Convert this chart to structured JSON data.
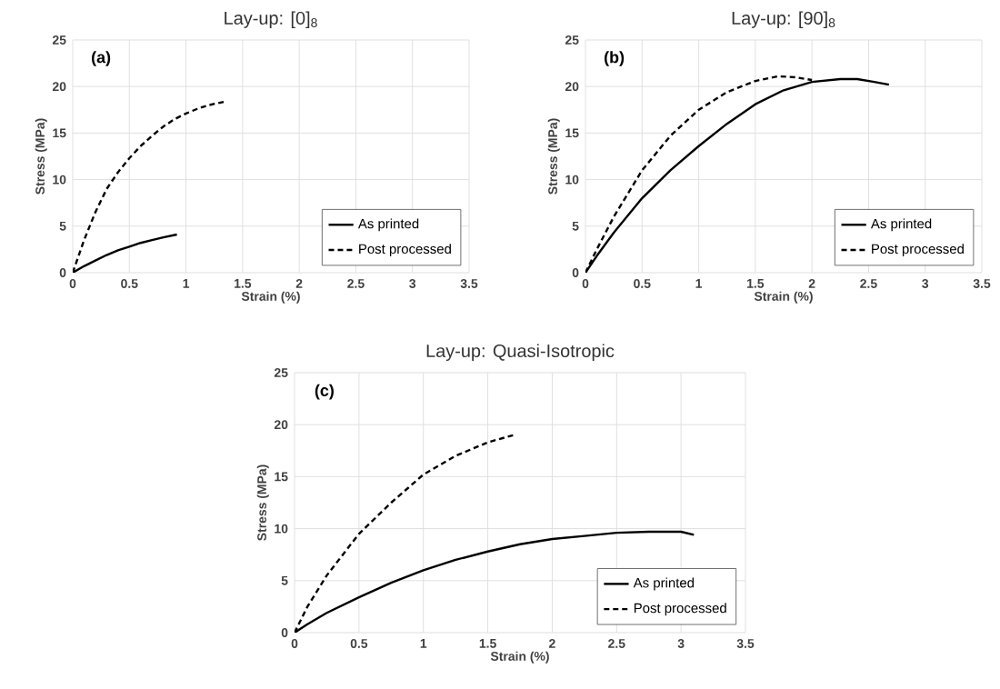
{
  "chart_data": [
    {
      "type": "line",
      "title": "Lay-up: [0]$_{8}$",
      "xlabel": "Strain (%)",
      "ylabel": "Stress (MPa)",
      "annotations": [
        "(a)"
      ],
      "xlim": [
        0,
        3.5
      ],
      "ylim": [
        0,
        25
      ],
      "xticks": [
        0,
        0.5,
        1,
        1.5,
        2,
        2.5,
        3,
        3.5
      ],
      "yticks": [
        0,
        5,
        10,
        15,
        20,
        25
      ],
      "grid": true,
      "legend": "bottom right",
      "series": [
        {
          "name": "As printed",
          "color": "#000000",
          "line_style": "solid",
          "x": [
            0,
            0.1,
            0.2,
            0.3,
            0.4,
            0.5,
            0.6,
            0.7,
            0.8,
            0.92
          ],
          "values": [
            0,
            0.7,
            1.3,
            1.9,
            2.4,
            2.8,
            3.2,
            3.5,
            3.8,
            4.1
          ]
        },
        {
          "name": "Post processed",
          "color": "#000000",
          "line_style": "dashed",
          "x": [
            0,
            0.1,
            0.2,
            0.3,
            0.4,
            0.5,
            0.6,
            0.7,
            0.8,
            0.9,
            1.0,
            1.1,
            1.2,
            1.35
          ],
          "values": [
            0,
            3.5,
            6.5,
            9,
            10.8,
            12.3,
            13.6,
            14.7,
            15.7,
            16.5,
            17.1,
            17.6,
            18,
            18.4
          ]
        }
      ]
    },
    {
      "type": "line",
      "title": "Lay-up: [90]$_{8}$",
      "xlabel": "Strain (%)",
      "ylabel": "Stress (MPa)",
      "annotations": [
        "(b)"
      ],
      "xlim": [
        0,
        3.5
      ],
      "ylim": [
        0,
        25
      ],
      "xticks": [
        0,
        0.5,
        1,
        1.5,
        2,
        2.5,
        3,
        3.5
      ],
      "yticks": [
        0,
        5,
        10,
        15,
        20,
        25
      ],
      "grid": true,
      "legend": "bottom right",
      "series": [
        {
          "name": "As printed",
          "color": "#000000",
          "line_style": "solid",
          "x": [
            0,
            0.1,
            0.25,
            0.5,
            0.75,
            1,
            1.25,
            1.5,
            1.75,
            2,
            2.25,
            2.4,
            2.55,
            2.68
          ],
          "values": [
            0,
            1.8,
            4.3,
            8,
            11,
            13.6,
            16,
            18.1,
            19.6,
            20.5,
            20.8,
            20.8,
            20.5,
            20.2
          ]
        },
        {
          "name": "Post processed",
          "color": "#000000",
          "line_style": "dashed",
          "x": [
            0,
            0.1,
            0.25,
            0.5,
            0.75,
            1,
            1.25,
            1.5,
            1.7,
            1.85,
            2.0
          ],
          "values": [
            0,
            2.5,
            6,
            11,
            14.7,
            17.5,
            19.4,
            20.6,
            21.1,
            21,
            20.7
          ]
        }
      ]
    },
    {
      "type": "line",
      "title": "Lay-up: Quasi-Isotropic",
      "xlabel": "Strain (%)",
      "ylabel": "Stress (MPa)",
      "annotations": [
        "(c)"
      ],
      "xlim": [
        0,
        3.5
      ],
      "ylim": [
        0,
        25
      ],
      "xticks": [
        0,
        0.5,
        1,
        1.5,
        2,
        2.5,
        3,
        3.5
      ],
      "yticks": [
        0,
        5,
        10,
        15,
        20,
        25
      ],
      "grid": true,
      "legend": "bottom right",
      "series": [
        {
          "name": "As printed",
          "color": "#000000",
          "line_style": "solid",
          "x": [
            0,
            0.1,
            0.25,
            0.5,
            0.75,
            1,
            1.25,
            1.5,
            1.75,
            2,
            2.25,
            2.5,
            2.75,
            3,
            3.1
          ],
          "values": [
            0,
            0.8,
            1.9,
            3.4,
            4.8,
            6,
            7,
            7.8,
            8.5,
            9,
            9.3,
            9.6,
            9.7,
            9.7,
            9.4
          ]
        },
        {
          "name": "Post processed",
          "color": "#000000",
          "line_style": "dashed",
          "x": [
            0,
            0.1,
            0.25,
            0.5,
            0.75,
            1,
            1.25,
            1.5,
            1.7
          ],
          "values": [
            0,
            2.5,
            5.5,
            9.5,
            12.5,
            15.2,
            17,
            18.3,
            19
          ]
        }
      ]
    }
  ]
}
